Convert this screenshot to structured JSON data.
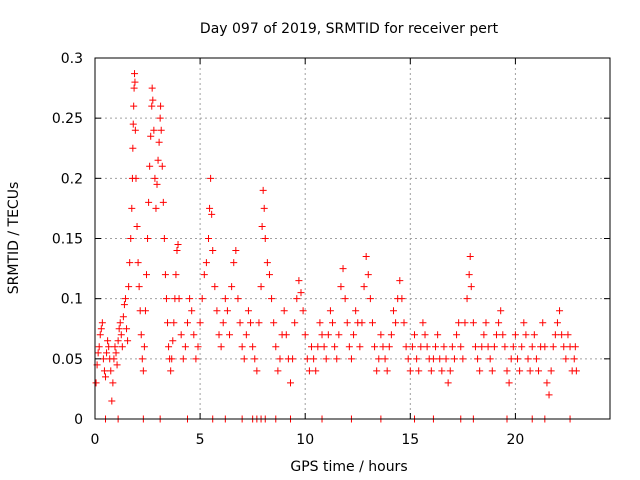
{
  "chart_data": {
    "type": "scatter",
    "title": "Day 097 of 2019, SRMTID for receiver pert",
    "xlabel": "GPS time / hours",
    "ylabel": "SRMTID / TECUs",
    "xlim": [
      0,
      24.5
    ],
    "ylim": [
      0,
      0.3
    ],
    "x_ticks": [
      0,
      5,
      10,
      15,
      20
    ],
    "x_tick_labels": [
      "0",
      "5",
      "10",
      "15",
      "20"
    ],
    "y_ticks": [
      0,
      0.05,
      0.1,
      0.15,
      0.2,
      0.25,
      0.3
    ],
    "y_tick_labels": [
      "0",
      "0.05",
      "0.1",
      "0.15",
      "0.2",
      "0.25",
      "0.3"
    ],
    "grid": true,
    "marker": "+",
    "color": "#ff0000",
    "series": [
      {
        "name": "SRMTID",
        "points": [
          [
            0.05,
            0.03
          ],
          [
            0.1,
            0.045
          ],
          [
            0.15,
            0.055
          ],
          [
            0.2,
            0.06
          ],
          [
            0.25,
            0.07
          ],
          [
            0.3,
            0.075
          ],
          [
            0.35,
            0.08
          ],
          [
            0.4,
            0.05
          ],
          [
            0.45,
            0.04
          ],
          [
            0.5,
            0.035
          ],
          [
            0.55,
            0.055
          ],
          [
            0.6,
            0.065
          ],
          [
            0.65,
            0.06
          ],
          [
            0.7,
            0.05
          ],
          [
            0.75,
            0.04
          ],
          [
            0.8,
            0.015
          ],
          [
            0.85,
            0.03
          ],
          [
            0.9,
            0.05
          ],
          [
            0.95,
            0.06
          ],
          [
            1.0,
            0.055
          ],
          [
            1.05,
            0.045
          ],
          [
            1.1,
            0.065
          ],
          [
            1.15,
            0.075
          ],
          [
            1.2,
            0.08
          ],
          [
            1.25,
            0.07
          ],
          [
            1.3,
            0.06
          ],
          [
            1.35,
            0.085
          ],
          [
            1.4,
            0.095
          ],
          [
            1.45,
            0.1
          ],
          [
            1.5,
            0.075
          ],
          [
            1.55,
            0.065
          ],
          [
            1.6,
            0.11
          ],
          [
            1.65,
            0.13
          ],
          [
            1.7,
            0.15
          ],
          [
            1.75,
            0.175
          ],
          [
            1.78,
            0.2
          ],
          [
            1.8,
            0.225
          ],
          [
            1.82,
            0.245
          ],
          [
            1.84,
            0.26
          ],
          [
            1.86,
            0.275
          ],
          [
            1.88,
            0.287
          ],
          [
            1.9,
            0.28
          ],
          [
            1.92,
            0.24
          ],
          [
            1.95,
            0.2
          ],
          [
            2.0,
            0.16
          ],
          [
            2.05,
            0.13
          ],
          [
            2.1,
            0.11
          ],
          [
            2.15,
            0.09
          ],
          [
            2.2,
            0.07
          ],
          [
            2.25,
            0.05
          ],
          [
            2.3,
            0.04
          ],
          [
            2.35,
            0.06
          ],
          [
            2.4,
            0.09
          ],
          [
            2.45,
            0.12
          ],
          [
            2.5,
            0.15
          ],
          [
            2.55,
            0.18
          ],
          [
            2.6,
            0.21
          ],
          [
            2.65,
            0.235
          ],
          [
            2.7,
            0.26
          ],
          [
            2.72,
            0.275
          ],
          [
            2.75,
            0.265
          ],
          [
            2.8,
            0.24
          ],
          [
            2.85,
            0.2
          ],
          [
            2.9,
            0.175
          ],
          [
            2.95,
            0.195
          ],
          [
            3.0,
            0.215
          ],
          [
            3.05,
            0.23
          ],
          [
            3.1,
            0.25
          ],
          [
            3.12,
            0.26
          ],
          [
            3.15,
            0.24
          ],
          [
            3.2,
            0.21
          ],
          [
            3.25,
            0.18
          ],
          [
            3.3,
            0.15
          ],
          [
            3.35,
            0.12
          ],
          [
            3.4,
            0.1
          ],
          [
            3.45,
            0.08
          ],
          [
            3.5,
            0.06
          ],
          [
            3.55,
            0.05
          ],
          [
            3.6,
            0.04
          ],
          [
            3.65,
            0.05
          ],
          [
            3.7,
            0.065
          ],
          [
            3.75,
            0.08
          ],
          [
            3.8,
            0.1
          ],
          [
            3.85,
            0.12
          ],
          [
            3.9,
            0.14
          ],
          [
            3.95,
            0.145
          ],
          [
            4.0,
            0.1
          ],
          [
            4.1,
            0.07
          ],
          [
            4.2,
            0.05
          ],
          [
            4.3,
            0.06
          ],
          [
            4.4,
            0.08
          ],
          [
            4.5,
            0.1
          ],
          [
            4.6,
            0.09
          ],
          [
            4.7,
            0.07
          ],
          [
            4.8,
            0.05
          ],
          [
            4.9,
            0.06
          ],
          [
            5.0,
            0.08
          ],
          [
            5.1,
            0.1
          ],
          [
            5.2,
            0.12
          ],
          [
            5.3,
            0.13
          ],
          [
            5.4,
            0.15
          ],
          [
            5.45,
            0.175
          ],
          [
            5.5,
            0.2
          ],
          [
            5.55,
            0.17
          ],
          [
            5.6,
            0.14
          ],
          [
            5.7,
            0.11
          ],
          [
            5.8,
            0.09
          ],
          [
            5.9,
            0.07
          ],
          [
            6.0,
            0.06
          ],
          [
            6.1,
            0.08
          ],
          [
            6.2,
            0.1
          ],
          [
            6.3,
            0.09
          ],
          [
            6.4,
            0.07
          ],
          [
            6.5,
            0.11
          ],
          [
            6.6,
            0.13
          ],
          [
            6.7,
            0.14
          ],
          [
            6.8,
            0.1
          ],
          [
            6.9,
            0.08
          ],
          [
            7.0,
            0.06
          ],
          [
            7.1,
            0.05
          ],
          [
            7.2,
            0.07
          ],
          [
            7.3,
            0.09
          ],
          [
            7.4,
            0.08
          ],
          [
            7.5,
            0.06
          ],
          [
            7.6,
            0.05
          ],
          [
            7.7,
            0.04
          ],
          [
            7.8,
            0.08
          ],
          [
            7.9,
            0.11
          ],
          [
            7.95,
            0.16
          ],
          [
            8.0,
            0.19
          ],
          [
            8.05,
            0.175
          ],
          [
            8.1,
            0.15
          ],
          [
            8.2,
            0.13
          ],
          [
            8.3,
            0.12
          ],
          [
            8.4,
            0.1
          ],
          [
            8.5,
            0.08
          ],
          [
            8.6,
            0.06
          ],
          [
            8.7,
            0.04
          ],
          [
            8.8,
            0.05
          ],
          [
            8.9,
            0.07
          ],
          [
            9.0,
            0.09
          ],
          [
            9.1,
            0.07
          ],
          [
            9.2,
            0.05
          ],
          [
            9.3,
            0.03
          ],
          [
            9.4,
            0.05
          ],
          [
            9.5,
            0.08
          ],
          [
            9.6,
            0.1
          ],
          [
            9.7,
            0.115
          ],
          [
            9.8,
            0.105
          ],
          [
            9.9,
            0.09
          ],
          [
            10.0,
            0.07
          ],
          [
            10.1,
            0.05
          ],
          [
            10.2,
            0.04
          ],
          [
            10.3,
            0.06
          ],
          [
            10.4,
            0.05
          ],
          [
            10.5,
            0.04
          ],
          [
            10.6,
            0.06
          ],
          [
            10.7,
            0.08
          ],
          [
            10.8,
            0.07
          ],
          [
            10.9,
            0.06
          ],
          [
            11.0,
            0.05
          ],
          [
            11.1,
            0.07
          ],
          [
            11.2,
            0.09
          ],
          [
            11.3,
            0.08
          ],
          [
            11.4,
            0.06
          ],
          [
            11.5,
            0.05
          ],
          [
            11.6,
            0.07
          ],
          [
            11.7,
            0.11
          ],
          [
            11.8,
            0.125
          ],
          [
            11.9,
            0.1
          ],
          [
            12.0,
            0.08
          ],
          [
            12.1,
            0.06
          ],
          [
            12.2,
            0.05
          ],
          [
            12.3,
            0.07
          ],
          [
            12.4,
            0.09
          ],
          [
            12.5,
            0.08
          ],
          [
            12.6,
            0.06
          ],
          [
            12.7,
            0.08
          ],
          [
            12.8,
            0.11
          ],
          [
            12.9,
            0.135
          ],
          [
            13.0,
            0.12
          ],
          [
            13.1,
            0.1
          ],
          [
            13.2,
            0.08
          ],
          [
            13.3,
            0.06
          ],
          [
            13.4,
            0.04
          ],
          [
            13.5,
            0.05
          ],
          [
            13.6,
            0.07
          ],
          [
            13.7,
            0.06
          ],
          [
            13.8,
            0.05
          ],
          [
            13.9,
            0.04
          ],
          [
            14.0,
            0.06
          ],
          [
            14.1,
            0.07
          ],
          [
            14.2,
            0.09
          ],
          [
            14.3,
            0.08
          ],
          [
            14.4,
            0.1
          ],
          [
            14.5,
            0.115
          ],
          [
            14.6,
            0.1
          ],
          [
            14.7,
            0.08
          ],
          [
            14.8,
            0.06
          ],
          [
            14.9,
            0.05
          ],
          [
            15.0,
            0.04
          ],
          [
            15.1,
            0.06
          ],
          [
            15.2,
            0.07
          ],
          [
            15.3,
            0.05
          ],
          [
            15.4,
            0.04
          ],
          [
            15.5,
            0.06
          ],
          [
            15.6,
            0.08
          ],
          [
            15.7,
            0.07
          ],
          [
            15.8,
            0.06
          ],
          [
            15.9,
            0.05
          ],
          [
            16.0,
            0.04
          ],
          [
            16.1,
            0.05
          ],
          [
            16.2,
            0.06
          ],
          [
            16.3,
            0.07
          ],
          [
            16.4,
            0.05
          ],
          [
            16.5,
            0.04
          ],
          [
            16.6,
            0.06
          ],
          [
            16.7,
            0.05
          ],
          [
            16.8,
            0.03
          ],
          [
            16.9,
            0.04
          ],
          [
            17.0,
            0.06
          ],
          [
            17.1,
            0.05
          ],
          [
            17.2,
            0.07
          ],
          [
            17.3,
            0.08
          ],
          [
            17.4,
            0.06
          ],
          [
            17.5,
            0.05
          ],
          [
            17.6,
            0.08
          ],
          [
            17.7,
            0.1
          ],
          [
            17.8,
            0.12
          ],
          [
            17.85,
            0.135
          ],
          [
            17.9,
            0.11
          ],
          [
            18.0,
            0.08
          ],
          [
            18.1,
            0.06
          ],
          [
            18.2,
            0.05
          ],
          [
            18.3,
            0.04
          ],
          [
            18.4,
            0.06
          ],
          [
            18.5,
            0.07
          ],
          [
            18.6,
            0.08
          ],
          [
            18.7,
            0.06
          ],
          [
            18.8,
            0.05
          ],
          [
            18.9,
            0.04
          ],
          [
            19.0,
            0.06
          ],
          [
            19.1,
            0.07
          ],
          [
            19.2,
            0.08
          ],
          [
            19.3,
            0.09
          ],
          [
            19.4,
            0.07
          ],
          [
            19.5,
            0.06
          ],
          [
            19.6,
            0.04
          ],
          [
            19.7,
            0.03
          ],
          [
            19.8,
            0.05
          ],
          [
            19.9,
            0.06
          ],
          [
            20.0,
            0.07
          ],
          [
            20.1,
            0.05
          ],
          [
            20.2,
            0.04
          ],
          [
            20.3,
            0.06
          ],
          [
            20.4,
            0.08
          ],
          [
            20.5,
            0.07
          ],
          [
            20.6,
            0.05
          ],
          [
            20.7,
            0.04
          ],
          [
            20.8,
            0.06
          ],
          [
            20.9,
            0.07
          ],
          [
            21.0,
            0.05
          ],
          [
            21.1,
            0.04
          ],
          [
            21.2,
            0.06
          ],
          [
            21.3,
            0.08
          ],
          [
            21.4,
            0.06
          ],
          [
            21.5,
            0.03
          ],
          [
            21.6,
            0.02
          ],
          [
            21.7,
            0.04
          ],
          [
            21.8,
            0.06
          ],
          [
            21.9,
            0.07
          ],
          [
            22.0,
            0.08
          ],
          [
            22.1,
            0.09
          ],
          [
            22.2,
            0.07
          ],
          [
            22.3,
            0.06
          ],
          [
            22.4,
            0.05
          ],
          [
            22.5,
            0.07
          ],
          [
            22.6,
            0.06
          ],
          [
            22.7,
            0.04
          ],
          [
            22.8,
            0.05
          ],
          [
            22.85,
            0.06
          ],
          [
            22.9,
            0.04
          ],
          [
            0.5,
            0.0
          ],
          [
            1.1,
            0.0
          ],
          [
            2.3,
            0.0
          ],
          [
            3.1,
            0.0
          ],
          [
            4.4,
            0.0
          ],
          [
            5.6,
            0.0
          ],
          [
            6.2,
            0.0
          ],
          [
            7.0,
            0.0
          ],
          [
            7.5,
            0.0
          ],
          [
            7.7,
            0.0
          ],
          [
            7.9,
            0.0
          ],
          [
            8.1,
            0.0
          ],
          [
            8.6,
            0.0
          ],
          [
            9.3,
            0.0
          ],
          [
            10.8,
            0.0
          ],
          [
            12.2,
            0.0
          ],
          [
            13.6,
            0.0
          ],
          [
            15.2,
            0.0
          ],
          [
            16.1,
            0.0
          ],
          [
            17.4,
            0.0
          ],
          [
            18.0,
            0.0
          ],
          [
            19.6,
            0.0
          ],
          [
            20.8,
            0.0
          ],
          [
            21.4,
            0.0
          ],
          [
            22.6,
            0.0
          ]
        ]
      }
    ]
  }
}
